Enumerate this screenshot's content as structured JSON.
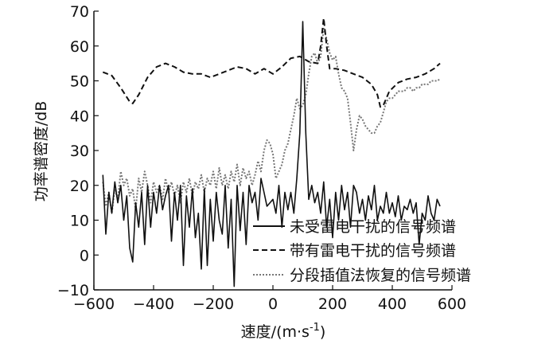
{
  "chart_data": {
    "type": "line",
    "title": "",
    "xlabel": "速度/(m·s",
    "xlabel_sup": "-1",
    "xlabel_close": ")",
    "ylabel": "功率谱密度/dB",
    "xlim": [
      -600,
      600
    ],
    "ylim": [
      -10,
      70
    ],
    "xticks": [
      -600,
      -400,
      -200,
      0,
      200,
      400,
      600
    ],
    "yticks": [
      -10,
      0,
      10,
      20,
      30,
      40,
      50,
      60,
      70
    ],
    "xtick_labels": [
      "−600",
      "−400",
      "−200",
      "0",
      "200",
      "400",
      "600"
    ],
    "ytick_labels": [
      "−10",
      "0",
      "10",
      "20",
      "30",
      "40",
      "50",
      "60",
      "70"
    ],
    "grid": false,
    "legend_position": "bottom-right",
    "series": [
      {
        "name": "未受雷电干扰的信号频谱",
        "style": "solid",
        "color": "#111111",
        "x": [
          -570,
          -560,
          -550,
          -540,
          -530,
          -520,
          -510,
          -500,
          -490,
          -480,
          -470,
          -460,
          -450,
          -440,
          -430,
          -420,
          -410,
          -400,
          -390,
          -380,
          -370,
          -360,
          -350,
          -340,
          -330,
          -320,
          -310,
          -300,
          -290,
          -280,
          -270,
          -260,
          -250,
          -240,
          -230,
          -220,
          -210,
          -200,
          -190,
          -180,
          -170,
          -160,
          -150,
          -140,
          -130,
          -120,
          -110,
          -100,
          -90,
          -80,
          -70,
          -60,
          -50,
          -40,
          -30,
          -20,
          -10,
          0,
          10,
          20,
          30,
          40,
          50,
          60,
          70,
          80,
          90,
          100,
          110,
          120,
          130,
          140,
          150,
          160,
          170,
          180,
          190,
          200,
          210,
          220,
          230,
          240,
          250,
          260,
          270,
          280,
          290,
          300,
          310,
          320,
          330,
          340,
          350,
          360,
          370,
          380,
          390,
          400,
          410,
          420,
          430,
          440,
          450,
          460,
          470,
          480,
          490,
          500,
          510,
          520,
          530,
          540,
          550,
          560
        ],
        "values": [
          23,
          6,
          18,
          12,
          21,
          15,
          20,
          10,
          17,
          2,
          -2,
          15,
          8,
          18,
          3,
          20,
          8,
          18,
          12,
          20,
          13,
          17,
          20,
          4,
          18,
          10,
          20,
          -3,
          17,
          8,
          19,
          5,
          12,
          -4,
          19,
          -3,
          16,
          4,
          18,
          10,
          6,
          20,
          2,
          16,
          -9,
          20,
          7,
          18,
          3,
          20,
          15,
          18,
          10,
          22,
          18,
          14,
          15,
          16,
          12,
          20,
          8,
          18,
          13,
          18,
          12,
          22,
          35,
          67,
          35,
          16,
          20,
          15,
          18,
          12,
          21,
          8,
          16,
          5,
          18,
          10,
          20,
          13,
          18,
          8,
          20,
          18,
          12,
          16,
          10,
          17,
          13,
          20,
          10,
          14,
          12,
          18,
          12,
          15,
          11,
          17,
          10,
          14,
          13,
          16,
          12,
          15,
          3,
          12,
          10,
          17,
          12,
          10,
          16,
          14
        ]
      },
      {
        "name": "带有雷电干扰的信号频谱",
        "style": "dashed",
        "color": "#111111",
        "x": [
          -570,
          -540,
          -510,
          -480,
          -470,
          -450,
          -420,
          -390,
          -360,
          -330,
          -300,
          -270,
          -240,
          -210,
          -180,
          -150,
          -120,
          -90,
          -60,
          -30,
          0,
          30,
          60,
          90,
          120,
          150,
          160,
          170,
          180,
          190,
          210,
          240,
          270,
          300,
          330,
          350,
          360,
          370,
          390,
          420,
          450,
          480,
          510,
          540,
          560
        ],
        "values": [
          52.5,
          51.5,
          48,
          44,
          43.5,
          46,
          51,
          54,
          55,
          54,
          52.5,
          52,
          52,
          51,
          52,
          53,
          54,
          53.5,
          52,
          53.5,
          52,
          54,
          56.5,
          57,
          55.5,
          55,
          60,
          68,
          60,
          53.5,
          53.5,
          53,
          52,
          51,
          49,
          46,
          42.5,
          43,
          47,
          49.5,
          50.5,
          51,
          52,
          53.5,
          55
        ]
      },
      {
        "name": "分段插值法恢复的信号频谱",
        "style": "dotted",
        "color": "#777777",
        "x": [
          -570,
          -560,
          -550,
          -540,
          -530,
          -520,
          -510,
          -500,
          -490,
          -480,
          -470,
          -460,
          -450,
          -440,
          -430,
          -420,
          -410,
          -400,
          -390,
          -380,
          -370,
          -360,
          -350,
          -340,
          -330,
          -320,
          -310,
          -300,
          -290,
          -280,
          -270,
          -260,
          -250,
          -240,
          -230,
          -220,
          -210,
          -200,
          -190,
          -180,
          -170,
          -160,
          -150,
          -140,
          -130,
          -120,
          -110,
          -100,
          -90,
          -80,
          -70,
          -60,
          -50,
          -40,
          -30,
          -20,
          -10,
          0,
          10,
          20,
          30,
          40,
          50,
          60,
          70,
          80,
          90,
          100,
          110,
          120,
          130,
          140,
          150,
          160,
          170,
          180,
          190,
          200,
          210,
          220,
          230,
          240,
          250,
          260,
          270,
          280,
          290,
          300,
          310,
          320,
          330,
          340,
          350,
          360,
          370,
          380,
          390,
          400,
          410,
          420,
          430,
          440,
          450,
          460,
          470,
          480,
          490,
          500,
          510,
          520,
          530,
          540,
          550,
          560
        ],
        "values": [
          21,
          14,
          18,
          12,
          19,
          16,
          24,
          20,
          22,
          17,
          19,
          13,
          22,
          18,
          24,
          20,
          15,
          21,
          18,
          20,
          16,
          22,
          18,
          21,
          17,
          20,
          15,
          21,
          18,
          22,
          17,
          21,
          19,
          23,
          18,
          22,
          20,
          24,
          19,
          25,
          20,
          23,
          19,
          24,
          21,
          26,
          20,
          25,
          22,
          24,
          20,
          23,
          27,
          24,
          30,
          33,
          32,
          29,
          22,
          24,
          26,
          30,
          32,
          36,
          40,
          45,
          42,
          43,
          46,
          52,
          57,
          58,
          55,
          57,
          65,
          62,
          58,
          56,
          57,
          52,
          48,
          47,
          45,
          38,
          30,
          36,
          40,
          39,
          37,
          36,
          35,
          35,
          37,
          38,
          41,
          44,
          45,
          45,
          46,
          47,
          47,
          47,
          48,
          48,
          47,
          48,
          48,
          49,
          49,
          49,
          50,
          50,
          50,
          50.5
        ]
      }
    ]
  }
}
